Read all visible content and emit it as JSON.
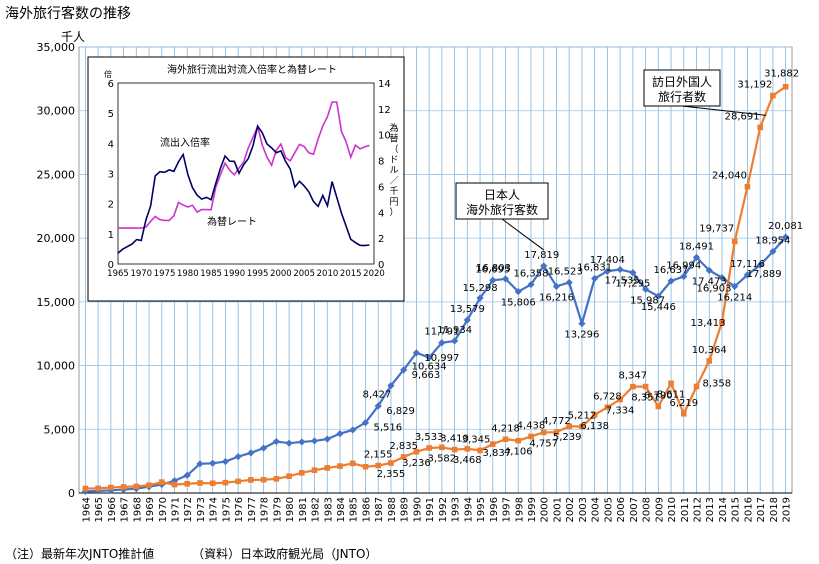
{
  "page_title": "海外旅行客数の推移",
  "footnote_left": "（注）最新年次JNTO推計値",
  "footnote_right": "（資料）日本政府観光局（JNTO）",
  "colors": {
    "japanese": "#4472c4",
    "foreign": "#ed7d31",
    "grid": "#7fb6e0",
    "inset_ratio": "#000066",
    "inset_fx": "#cc33cc"
  },
  "chart_data": [
    {
      "type": "line",
      "title": "",
      "ylabel": "千人",
      "ylim": [
        0,
        35000
      ],
      "yticks": [
        0,
        5000,
        10000,
        15000,
        20000,
        25000,
        30000,
        35000
      ],
      "ytick_labels": [
        "0",
        "5,000",
        "10,000",
        "15,000",
        "20,000",
        "25,000",
        "30,000",
        "35,000"
      ],
      "grid": true,
      "x": [
        "1964",
        "1965",
        "1966",
        "1967",
        "1968",
        "1969",
        "1970",
        "1971",
        "1972",
        "1973",
        "1974",
        "1975",
        "1976",
        "1977",
        "1978",
        "1979",
        "1980",
        "1981",
        "1982",
        "1983",
        "1984",
        "1985",
        "1986",
        "1987",
        "1988",
        "1989",
        "1990",
        "1991",
        "1992",
        "1993",
        "1994",
        "1995",
        "1996",
        "1997",
        "1998",
        "1999",
        "2000",
        "2001",
        "2002",
        "2003",
        "2004",
        "2005",
        "2006",
        "2007",
        "2008",
        "2009",
        "2010",
        "2011",
        "2012",
        "2013",
        "2014",
        "2015",
        "2016",
        "2017",
        "2018",
        "2019"
      ],
      "series": [
        {
          "name": "日本人海外旅行客数",
          "callout": [
            "日本人",
            "海外旅行客数"
          ],
          "values": [
            128,
            159,
            212,
            268,
            344,
            493,
            663,
            961,
            1392,
            2289,
            2336,
            2466,
            2853,
            3151,
            3525,
            4038,
            3909,
            4006,
            4086,
            4233,
            4659,
            4948,
            5516,
            6829,
            8427,
            9663,
            10997,
            10634,
            11791,
            11934,
            13579,
            15298,
            16695,
            16803,
            15806,
            16358,
            17819,
            16216,
            16523,
            13296,
            16831,
            17404,
            17535,
            17295,
            15987,
            15446,
            16637,
            16994,
            18491,
            17473,
            16903,
            16214,
            17116,
            17889,
            18954,
            20081
          ],
          "labels": [
            null,
            null,
            null,
            null,
            null,
            null,
            null,
            null,
            null,
            null,
            null,
            null,
            null,
            null,
            null,
            null,
            null,
            null,
            null,
            null,
            null,
            null,
            "5,516",
            "6,829",
            "8,427",
            "9,663",
            "10,997",
            "10,634",
            "11,791",
            "11,934",
            "13,579",
            "15,298",
            "16,695",
            "16,803",
            "15,806",
            "16,358",
            "17,819",
            "16,216",
            "16,523",
            "13,296",
            "16,831",
            "17,404",
            "17,535",
            "17,295",
            "15,987",
            "15,446",
            "16,637",
            "16,994",
            "18,491",
            "17,473",
            "16,903",
            "16,214",
            "17,116",
            "17,889",
            "18,954",
            "20,081"
          ]
        },
        {
          "name": "訪日外国人旅行者数",
          "callout": [
            "訪日外国人",
            "旅行者数"
          ],
          "values": [
            353,
            367,
            433,
            477,
            519,
            609,
            854,
            660,
            724,
            785,
            764,
            812,
            915,
            1028,
            1039,
            1113,
            1317,
            1583,
            1793,
            1968,
            2110,
            2327,
            2062,
            2155,
            2355,
            2835,
            3236,
            3533,
            3582,
            3410,
            3468,
            3345,
            3837,
            4218,
            4106,
            4438,
            4757,
            4772,
            5239,
            5212,
            6138,
            6728,
            7334,
            8347,
            8351,
            6790,
            8611,
            6219,
            8358,
            10364,
            13413,
            19737,
            24040,
            28691,
            31192,
            31882
          ],
          "labels": [
            null,
            null,
            null,
            null,
            null,
            null,
            null,
            null,
            null,
            null,
            null,
            null,
            null,
            null,
            null,
            null,
            null,
            null,
            null,
            null,
            null,
            null,
            null,
            "2,155",
            "2,355",
            "2,835",
            "3,236",
            "3,533",
            "3,582",
            "3,410",
            "3,468",
            "3,345",
            "3,837",
            "4,218",
            "4,106",
            "4,438",
            "4,757",
            "4,772",
            "5,239",
            "5,212",
            "6,138",
            "6,728",
            "7,334",
            "8,347",
            "8,351",
            "6,790",
            "8,611",
            "6,219",
            "8,358",
            "10,364",
            "13,413",
            "19,737",
            "24,040",
            "28,691",
            "31,192",
            "31,882"
          ]
        }
      ]
    },
    {
      "type": "line",
      "title": "海外旅行流出対流入倍率と為替レート",
      "ylabel": "倍",
      "ylabel_right": "為替（ドル／千円）",
      "ylim": [
        0,
        6
      ],
      "ylim_right": [
        0,
        14
      ],
      "yticks": [
        0,
        1,
        2,
        3,
        4,
        5,
        6
      ],
      "yticks_right": [
        0,
        2,
        4,
        6,
        8,
        10,
        12,
        14
      ],
      "xlim": [
        1965,
        2020
      ],
      "xticks": [
        1965,
        1970,
        1975,
        1980,
        1985,
        1990,
        1995,
        2000,
        2005,
        2010,
        2015,
        2020
      ],
      "grid": false,
      "series": [
        {
          "name": "流出入倍率",
          "axis": "left",
          "x": [
            1964,
            1966,
            1968,
            1969,
            1970,
            1971,
            1972,
            1973,
            1974,
            1975,
            1976,
            1977,
            1978,
            1979,
            1980,
            1981,
            1982,
            1983,
            1984,
            1985,
            1986,
            1987,
            1988,
            1989,
            1990,
            1991,
            1992,
            1993,
            1994,
            1995,
            1996,
            1997,
            1998,
            1999,
            2000,
            2001,
            2002,
            2003,
            2004,
            2005,
            2006,
            2007,
            2008,
            2009,
            2010,
            2011,
            2012,
            2013,
            2014,
            2015,
            2016,
            2017,
            2018,
            2019
          ],
          "values": [
            0.36,
            0.49,
            0.66,
            0.81,
            0.78,
            1.46,
            1.92,
            2.92,
            3.06,
            3.04,
            3.12,
            3.07,
            3.39,
            3.63,
            2.97,
            2.53,
            2.28,
            2.15,
            2.21,
            2.13,
            2.67,
            3.17,
            3.58,
            3.41,
            3.4,
            3.01,
            3.29,
            3.5,
            3.92,
            4.57,
            4.35,
            3.98,
            3.85,
            3.69,
            3.75,
            3.4,
            3.15,
            2.55,
            2.74,
            2.59,
            2.39,
            2.07,
            1.91,
            2.27,
            1.93,
            2.73,
            2.21,
            1.69,
            1.26,
            0.82,
            0.71,
            0.62,
            0.61,
            0.63
          ]
        },
        {
          "name": "為替レート",
          "axis": "right",
          "x": [
            1964,
            1966,
            1968,
            1970,
            1971,
            1972,
            1973,
            1974,
            1975,
            1976,
            1977,
            1978,
            1979,
            1980,
            1981,
            1982,
            1983,
            1984,
            1985,
            1986,
            1987,
            1988,
            1989,
            1990,
            1991,
            1992,
            1993,
            1994,
            1995,
            1996,
            1997,
            1998,
            1999,
            2000,
            2001,
            2002,
            2003,
            2004,
            2005,
            2006,
            2007,
            2008,
            2009,
            2010,
            2011,
            2012,
            2013,
            2014,
            2015,
            2016,
            2017,
            2018,
            2019
          ],
          "values": [
            2.78,
            2.78,
            2.78,
            2.78,
            2.86,
            3.29,
            3.68,
            3.43,
            3.37,
            3.37,
            3.73,
            4.76,
            4.56,
            4.41,
            4.54,
            4.02,
            4.21,
            4.21,
            4.19,
            5.93,
            6.91,
            7.8,
            7.25,
            6.9,
            7.43,
            7.89,
            8.99,
            9.78,
            10.63,
            9.19,
            8.26,
            7.64,
            8.79,
            9.28,
            8.23,
            7.98,
            8.62,
            9.25,
            9.09,
            8.6,
            8.49,
            9.68,
            10.68,
            11.39,
            12.53,
            12.53,
            10.26,
            9.46,
            8.26,
            9.19,
            8.91,
            9.06,
            9.17
          ]
        }
      ]
    }
  ]
}
